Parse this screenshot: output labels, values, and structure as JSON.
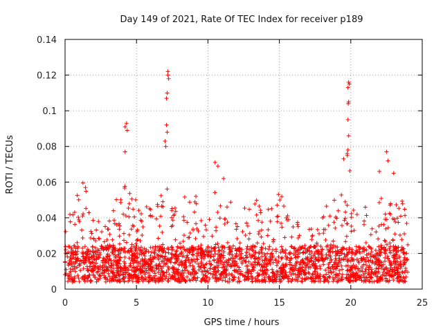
{
  "chart_data": {
    "type": "scatter",
    "title": "Day 149 of 2021, Rate Of TEC Index for receiver p189",
    "xlabel": "GPS time / hours",
    "ylabel": "ROTI / TECUs",
    "xlim": [
      0,
      25
    ],
    "ylim": [
      0,
      0.14
    ],
    "xticks": [
      0,
      5,
      10,
      15,
      20,
      25
    ],
    "yticks": [
      0,
      0.02,
      0.04,
      0.06,
      0.08,
      0.1,
      0.12,
      0.14
    ],
    "xtick_labels": [
      "0",
      "5",
      "10",
      "15",
      "20",
      "25"
    ],
    "ytick_labels": [
      "0",
      "0.02",
      "0.04",
      "0.06",
      "0.08",
      "0.1",
      "0.12",
      "0.14"
    ],
    "grid": true,
    "marker": "+",
    "series_color": "#ff0000",
    "data_x_range": [
      0,
      24
    ],
    "series": [
      {
        "name": "ROTI",
        "baseline_points": 2400,
        "envelope": [
          [
            0.0,
            0.034
          ],
          [
            0.5,
            0.05
          ],
          [
            1.0,
            0.06
          ],
          [
            1.3,
            0.07
          ],
          [
            1.8,
            0.04
          ],
          [
            2.4,
            0.05
          ],
          [
            3.0,
            0.04
          ],
          [
            3.5,
            0.048
          ],
          [
            4.2,
            0.068
          ],
          [
            4.8,
            0.055
          ],
          [
            5.3,
            0.045
          ],
          [
            6.0,
            0.048
          ],
          [
            6.5,
            0.05
          ],
          [
            7.0,
            0.065
          ],
          [
            7.5,
            0.05
          ],
          [
            8.0,
            0.045
          ],
          [
            8.6,
            0.056
          ],
          [
            9.2,
            0.055
          ],
          [
            9.8,
            0.04
          ],
          [
            10.5,
            0.07
          ],
          [
            11.0,
            0.06
          ],
          [
            11.8,
            0.045
          ],
          [
            12.5,
            0.05
          ],
          [
            13.2,
            0.05
          ],
          [
            14.0,
            0.052
          ],
          [
            14.5,
            0.045
          ],
          [
            15.0,
            0.062
          ],
          [
            15.5,
            0.04
          ],
          [
            16.0,
            0.05
          ],
          [
            16.5,
            0.03
          ],
          [
            17.3,
            0.035
          ],
          [
            18.0,
            0.045
          ],
          [
            18.7,
            0.052
          ],
          [
            19.3,
            0.055
          ],
          [
            19.7,
            0.078
          ],
          [
            20.2,
            0.055
          ],
          [
            20.8,
            0.05
          ],
          [
            21.3,
            0.045
          ],
          [
            22.0,
            0.055
          ],
          [
            22.4,
            0.068
          ],
          [
            23.0,
            0.05
          ],
          [
            23.6,
            0.05
          ],
          [
            24.0,
            0.04
          ]
        ],
        "peaks": [
          {
            "x": 4.2,
            "y": 0.091
          },
          {
            "x": 4.3,
            "y": 0.093
          },
          {
            "x": 4.35,
            "y": 0.089
          },
          {
            "x": 4.2,
            "y": 0.077
          },
          {
            "x": 7.0,
            "y": 0.083
          },
          {
            "x": 7.05,
            "y": 0.08
          },
          {
            "x": 7.1,
            "y": 0.092
          },
          {
            "x": 7.15,
            "y": 0.088
          },
          {
            "x": 7.1,
            "y": 0.107
          },
          {
            "x": 7.15,
            "y": 0.11
          },
          {
            "x": 7.2,
            "y": 0.12
          },
          {
            "x": 7.2,
            "y": 0.122
          },
          {
            "x": 7.25,
            "y": 0.118
          },
          {
            "x": 10.5,
            "y": 0.071
          },
          {
            "x": 10.7,
            "y": 0.069
          },
          {
            "x": 11.1,
            "y": 0.062
          },
          {
            "x": 19.5,
            "y": 0.073
          },
          {
            "x": 19.8,
            "y": 0.078
          },
          {
            "x": 19.75,
            "y": 0.076
          },
          {
            "x": 19.85,
            "y": 0.086
          },
          {
            "x": 19.8,
            "y": 0.095
          },
          {
            "x": 19.82,
            "y": 0.104
          },
          {
            "x": 19.85,
            "y": 0.105
          },
          {
            "x": 19.8,
            "y": 0.113
          },
          {
            "x": 19.85,
            "y": 0.116
          },
          {
            "x": 19.9,
            "y": 0.115
          },
          {
            "x": 22.0,
            "y": 0.066
          },
          {
            "x": 22.5,
            "y": 0.077
          },
          {
            "x": 22.6,
            "y": 0.072
          },
          {
            "x": 23.0,
            "y": 0.065
          }
        ]
      }
    ]
  }
}
